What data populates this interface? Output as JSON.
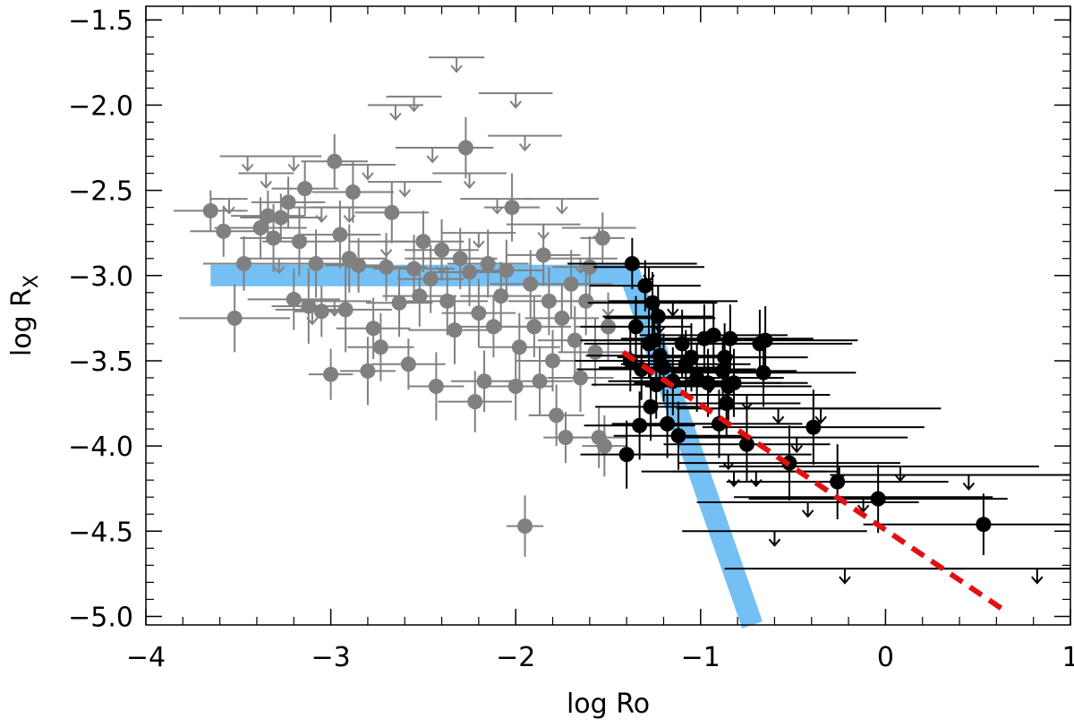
{
  "chart_data": {
    "type": "scatter",
    "xlabel": "log Ro",
    "ylabel": "log R",
    "ylabel_subscript": "X",
    "xlim": [
      -4,
      1
    ],
    "ylim": [
      -5.05,
      -1.42
    ],
    "x_ticks": [
      -4,
      -3,
      -2,
      -1,
      0,
      1
    ],
    "x_tick_labels": [
      "−4",
      "−3",
      "−2",
      "−1",
      "0",
      "1"
    ],
    "y_ticks": [
      -5.0,
      -4.5,
      -4.0,
      -3.5,
      -3.0,
      -2.5,
      -2.0,
      -1.5
    ],
    "y_tick_labels": [
      "−5.0",
      "−4.5",
      "−4.0",
      "−3.5",
      "−3.0",
      "−2.5",
      "−2.0",
      "−1.5"
    ],
    "colors": {
      "gray_sample": "#808080",
      "black_sample": "#000000",
      "saturation_model": "#74C0F5",
      "fit_line": "#E21010"
    },
    "model_curve": {
      "name": "saturation model",
      "x": [
        -3.65,
        -1.38,
        -0.72
      ],
      "y": [
        -3.0,
        -3.0,
        -5.05
      ]
    },
    "fit_line": {
      "name": "fit",
      "x": [
        -1.42,
        0.65
      ],
      "y": [
        -3.45,
        -4.97
      ]
    },
    "series": [
      {
        "name": "gray detections",
        "points": [
          {
            "x": -3.65,
            "y": -2.62,
            "xerr": 0.2,
            "yerr": 0.12
          },
          {
            "x": -3.58,
            "y": -2.74,
            "xerr": 0.18,
            "yerr": 0.15
          },
          {
            "x": -3.52,
            "y": -3.25,
            "xerr": 0.3,
            "yerr": 0.2
          },
          {
            "x": -3.47,
            "y": -2.93,
            "xerr": 0.22,
            "yerr": 0.16
          },
          {
            "x": -3.38,
            "y": -2.72,
            "xerr": 0.25,
            "yerr": 0.18
          },
          {
            "x": -3.34,
            "y": -2.65,
            "xerr": 0.2,
            "yerr": 0.15
          },
          {
            "x": -3.31,
            "y": -2.78,
            "xerr": 0.18,
            "yerr": 0.2
          },
          {
            "x": -3.27,
            "y": -2.66,
            "xerr": 0.22,
            "yerr": 0.14
          },
          {
            "x": -3.23,
            "y": -2.57,
            "xerr": 0.2,
            "yerr": 0.15
          },
          {
            "x": -3.2,
            "y": -3.14,
            "xerr": 0.25,
            "yerr": 0.18
          },
          {
            "x": -3.17,
            "y": -2.8,
            "xerr": 0.2,
            "yerr": 0.2
          },
          {
            "x": -3.14,
            "y": -2.49,
            "xerr": 0.18,
            "yerr": 0.16
          },
          {
            "x": -3.12,
            "y": -3.18,
            "xerr": 0.2,
            "yerr": 0.22
          },
          {
            "x": -3.08,
            "y": -2.93,
            "xerr": 0.22,
            "yerr": 0.2
          },
          {
            "x": -3.05,
            "y": -3.21,
            "xerr": 0.15,
            "yerr": 0.15
          },
          {
            "x": -3.0,
            "y": -3.58,
            "xerr": 0.12,
            "yerr": 0.15
          },
          {
            "x": -2.98,
            "y": -2.33,
            "xerr": 0.18,
            "yerr": 0.16
          },
          {
            "x": -2.95,
            "y": -2.76,
            "xerr": 0.22,
            "yerr": 0.2
          },
          {
            "x": -2.92,
            "y": -3.2,
            "xerr": 0.25,
            "yerr": 0.25
          },
          {
            "x": -2.9,
            "y": -2.9,
            "xerr": 0.2,
            "yerr": 0.2
          },
          {
            "x": -2.88,
            "y": -2.51,
            "xerr": 0.22,
            "yerr": 0.18
          },
          {
            "x": -2.85,
            "y": -2.94,
            "xerr": 0.18,
            "yerr": 0.16
          },
          {
            "x": -2.8,
            "y": -3.56,
            "xerr": 0.15,
            "yerr": 0.2
          },
          {
            "x": -2.77,
            "y": -3.31,
            "xerr": 0.2,
            "yerr": 0.18
          },
          {
            "x": -2.73,
            "y": -3.42,
            "xerr": 0.18,
            "yerr": 0.2
          },
          {
            "x": -2.7,
            "y": -2.95,
            "xerr": 0.22,
            "yerr": 0.2
          },
          {
            "x": -2.67,
            "y": -2.63,
            "xerr": 0.2,
            "yerr": 0.18
          },
          {
            "x": -2.63,
            "y": -3.16,
            "xerr": 0.18,
            "yerr": 0.2
          },
          {
            "x": -2.58,
            "y": -3.52,
            "xerr": 0.2,
            "yerr": 0.15
          },
          {
            "x": -2.55,
            "y": -2.96,
            "xerr": 0.22,
            "yerr": 0.2
          },
          {
            "x": -2.52,
            "y": -3.12,
            "xerr": 0.2,
            "yerr": 0.18
          },
          {
            "x": -2.5,
            "y": -2.8,
            "xerr": 0.22,
            "yerr": 0.18
          },
          {
            "x": -2.46,
            "y": -3.02,
            "xerr": 0.18,
            "yerr": 0.2
          },
          {
            "x": -2.43,
            "y": -3.65,
            "xerr": 0.15,
            "yerr": 0.2
          },
          {
            "x": -2.4,
            "y": -2.85,
            "xerr": 0.2,
            "yerr": 0.18
          },
          {
            "x": -2.37,
            "y": -3.15,
            "xerr": 0.22,
            "yerr": 0.2
          },
          {
            "x": -2.33,
            "y": -3.32,
            "xerr": 0.25,
            "yerr": 0.2
          },
          {
            "x": -2.3,
            "y": -2.9,
            "xerr": 0.2,
            "yerr": 0.18
          },
          {
            "x": -2.27,
            "y": -2.25,
            "xerr": 0.15,
            "yerr": 0.18
          },
          {
            "x": -2.25,
            "y": -2.98,
            "xerr": 0.22,
            "yerr": 0.2
          },
          {
            "x": -2.22,
            "y": -3.74,
            "xerr": 0.2,
            "yerr": 0.18
          },
          {
            "x": -2.2,
            "y": -3.22,
            "xerr": 0.2,
            "yerr": 0.2
          },
          {
            "x": -2.17,
            "y": -3.62,
            "xerr": 0.18,
            "yerr": 0.18
          },
          {
            "x": -2.15,
            "y": -2.93,
            "xerr": 0.22,
            "yerr": 0.2
          },
          {
            "x": -2.12,
            "y": -3.3,
            "xerr": 0.2,
            "yerr": 0.18
          },
          {
            "x": -2.08,
            "y": -3.12,
            "xerr": 0.22,
            "yerr": 0.2
          },
          {
            "x": -2.05,
            "y": -2.97,
            "xerr": 0.2,
            "yerr": 0.18
          },
          {
            "x": -2.02,
            "y": -2.6,
            "xerr": 0.15,
            "yerr": 0.2
          },
          {
            "x": -2.0,
            "y": -3.65,
            "xerr": 0.2,
            "yerr": 0.2
          },
          {
            "x": -1.98,
            "y": -3.42,
            "xerr": 0.22,
            "yerr": 0.2
          },
          {
            "x": -1.95,
            "y": -4.47,
            "xerr": 0.1,
            "yerr": 0.18
          },
          {
            "x": -1.92,
            "y": -3.05,
            "xerr": 0.22,
            "yerr": 0.2
          },
          {
            "x": -1.9,
            "y": -3.3,
            "xerr": 0.2,
            "yerr": 0.18
          },
          {
            "x": -1.87,
            "y": -3.62,
            "xerr": 0.18,
            "yerr": 0.2
          },
          {
            "x": -1.85,
            "y": -2.88,
            "xerr": 0.2,
            "yerr": 0.18
          },
          {
            "x": -1.82,
            "y": -3.15,
            "xerr": 0.22,
            "yerr": 0.2
          },
          {
            "x": -1.8,
            "y": -3.5,
            "xerr": 0.2,
            "yerr": 0.18
          },
          {
            "x": -1.78,
            "y": -3.82,
            "xerr": 0.15,
            "yerr": 0.18
          },
          {
            "x": -1.75,
            "y": -3.25,
            "xerr": 0.2,
            "yerr": 0.2
          },
          {
            "x": -1.73,
            "y": -3.95,
            "xerr": 0.12,
            "yerr": 0.15
          },
          {
            "x": -1.7,
            "y": -3.05,
            "xerr": 0.22,
            "yerr": 0.2
          },
          {
            "x": -1.68,
            "y": -3.38,
            "xerr": 0.2,
            "yerr": 0.2
          },
          {
            "x": -1.65,
            "y": -3.6,
            "xerr": 0.18,
            "yerr": 0.2
          },
          {
            "x": -1.62,
            "y": -3.15,
            "xerr": 0.22,
            "yerr": 0.2
          },
          {
            "x": -1.6,
            "y": -2.95,
            "xerr": 0.2,
            "yerr": 0.18
          },
          {
            "x": -1.57,
            "y": -3.45,
            "xerr": 0.2,
            "yerr": 0.2
          },
          {
            "x": -1.55,
            "y": -3.95,
            "xerr": 0.15,
            "yerr": 0.18
          },
          {
            "x": -1.53,
            "y": -2.78,
            "xerr": 0.12,
            "yerr": 0.15
          },
          {
            "x": -1.5,
            "y": -3.3,
            "xerr": 0.18,
            "yerr": 0.2
          },
          {
            "x": -1.52,
            "y": -4.0,
            "xerr": 0.12,
            "yerr": 0.18
          }
        ]
      },
      {
        "name": "gray upper limits",
        "points": [
          {
            "x": -3.55,
            "y": -2.55,
            "xerr": 0.1
          },
          {
            "x": -3.45,
            "y": -2.3,
            "xerr": 0.15
          },
          {
            "x": -3.35,
            "y": -2.4,
            "xerr": 0.15
          },
          {
            "x": -3.28,
            "y": -2.9,
            "xerr": 0.2
          },
          {
            "x": -3.2,
            "y": -2.3,
            "xerr": 0.15
          },
          {
            "x": -3.1,
            "y": -3.2,
            "xerr": 0.2
          },
          {
            "x": -2.98,
            "y": -3.15,
            "xerr": 0.2
          },
          {
            "x": -2.9,
            "y": -2.6,
            "xerr": 0.2
          },
          {
            "x": -2.8,
            "y": -2.35,
            "xerr": 0.15
          },
          {
            "x": -2.7,
            "y": -2.8,
            "xerr": 0.2
          },
          {
            "x": -2.6,
            "y": -2.45,
            "xerr": 0.2
          },
          {
            "x": -2.55,
            "y": -1.95,
            "xerr": 0.15
          },
          {
            "x": -2.45,
            "y": -2.25,
            "xerr": 0.2
          },
          {
            "x": -2.4,
            "y": -2.9,
            "xerr": 0.2
          },
          {
            "x": -2.32,
            "y": -1.72,
            "xerr": 0.15
          },
          {
            "x": -2.25,
            "y": -2.4,
            "xerr": 0.2
          },
          {
            "x": -2.2,
            "y": -2.75,
            "xerr": 0.2
          },
          {
            "x": -2.1,
            "y": -2.55,
            "xerr": 0.2
          },
          {
            "x": -2.0,
            "y": -1.93,
            "xerr": 0.2
          },
          {
            "x": -1.95,
            "y": -2.18,
            "xerr": 0.2
          },
          {
            "x": -1.85,
            "y": -2.7,
            "xerr": 0.2
          },
          {
            "x": -1.75,
            "y": -2.55,
            "xerr": 0.2
          },
          {
            "x": -1.65,
            "y": -2.9,
            "xerr": 0.2
          },
          {
            "x": -1.55,
            "y": -2.72,
            "xerr": 0.2
          },
          {
            "x": -1.5,
            "y": -3.15,
            "xerr": 0.2
          },
          {
            "x": -2.65,
            "y": -2.0,
            "xerr": 0.15
          },
          {
            "x": -3.05,
            "y": -2.6,
            "xerr": 0.2
          }
        ]
      },
      {
        "name": "black detections",
        "points": [
          {
            "x": -1.4,
            "y": -4.05,
            "xerr": 0.25,
            "yerr": 0.2
          },
          {
            "x": -1.38,
            "y": -3.5,
            "xerr": 0.3,
            "yerr": 0.18
          },
          {
            "x": -1.37,
            "y": -2.93,
            "xerr": 0.35,
            "yerr": 0.15
          },
          {
            "x": -1.35,
            "y": -3.3,
            "xerr": 0.3,
            "yerr": 0.18
          },
          {
            "x": -1.33,
            "y": -3.88,
            "xerr": 0.3,
            "yerr": 0.2
          },
          {
            "x": -1.32,
            "y": -3.55,
            "xerr": 0.35,
            "yerr": 0.18
          },
          {
            "x": -1.3,
            "y": -3.06,
            "xerr": 0.3,
            "yerr": 0.15
          },
          {
            "x": -1.28,
            "y": -3.4,
            "xerr": 0.35,
            "yerr": 0.2
          },
          {
            "x": -1.27,
            "y": -3.77,
            "xerr": 0.3,
            "yerr": 0.2
          },
          {
            "x": -1.26,
            "y": -3.16,
            "xerr": 0.35,
            "yerr": 0.18
          },
          {
            "x": -1.25,
            "y": -3.38,
            "xerr": 0.4,
            "yerr": 0.18
          },
          {
            "x": -1.24,
            "y": -3.64,
            "xerr": 0.35,
            "yerr": 0.2
          },
          {
            "x": -1.23,
            "y": -3.24,
            "xerr": 0.3,
            "yerr": 0.18
          },
          {
            "x": -1.22,
            "y": -3.47,
            "xerr": 0.4,
            "yerr": 0.18
          },
          {
            "x": -1.2,
            "y": -3.54,
            "xerr": 0.35,
            "yerr": 0.2
          },
          {
            "x": -1.18,
            "y": -3.87,
            "xerr": 0.3,
            "yerr": 0.2
          },
          {
            "x": -1.15,
            "y": -3.62,
            "xerr": 0.35,
            "yerr": 0.2
          },
          {
            "x": -1.12,
            "y": -3.94,
            "xerr": 0.35,
            "yerr": 0.2
          },
          {
            "x": -1.1,
            "y": -3.4,
            "xerr": 0.4,
            "yerr": 0.2
          },
          {
            "x": -1.08,
            "y": -3.52,
            "xerr": 0.35,
            "yerr": 0.2
          },
          {
            "x": -1.05,
            "y": -3.48,
            "xerr": 0.4,
            "yerr": 0.2
          },
          {
            "x": -1.02,
            "y": -3.6,
            "xerr": 0.35,
            "yerr": 0.2
          },
          {
            "x": -0.98,
            "y": -3.37,
            "xerr": 0.45,
            "yerr": 0.2
          },
          {
            "x": -0.96,
            "y": -3.63,
            "xerr": 0.4,
            "yerr": 0.2
          },
          {
            "x": -0.93,
            "y": -3.35,
            "xerr": 0.4,
            "yerr": 0.2
          },
          {
            "x": -0.9,
            "y": -3.87,
            "xerr": 0.45,
            "yerr": 0.2
          },
          {
            "x": -0.88,
            "y": -3.56,
            "xerr": 0.4,
            "yerr": 0.2
          },
          {
            "x": -0.87,
            "y": -3.48,
            "xerr": 0.45,
            "yerr": 0.2
          },
          {
            "x": -0.86,
            "y": -3.75,
            "xerr": 0.4,
            "yerr": 0.2
          },
          {
            "x": -0.85,
            "y": -3.65,
            "xerr": 0.45,
            "yerr": 0.2
          },
          {
            "x": -0.84,
            "y": -3.37,
            "xerr": 0.45,
            "yerr": 0.2
          },
          {
            "x": -0.82,
            "y": -3.63,
            "xerr": 0.4,
            "yerr": 0.2
          },
          {
            "x": -0.75,
            "y": -3.99,
            "xerr": 0.45,
            "yerr": 0.22
          },
          {
            "x": -0.68,
            "y": -3.4,
            "xerr": 0.5,
            "yerr": 0.2
          },
          {
            "x": -0.66,
            "y": -3.57,
            "xerr": 0.5,
            "yerr": 0.2
          },
          {
            "x": -0.65,
            "y": -3.38,
            "xerr": 0.5,
            "yerr": 0.2
          },
          {
            "x": -0.52,
            "y": -4.1,
            "xerr": 0.6,
            "yerr": 0.22
          },
          {
            "x": -0.39,
            "y": -3.89,
            "xerr": 0.6,
            "yerr": 0.22
          },
          {
            "x": -0.26,
            "y": -4.21,
            "xerr": 0.6,
            "yerr": 0.22
          },
          {
            "x": -0.04,
            "y": -4.31,
            "xerr": 0.7,
            "yerr": 0.2
          },
          {
            "x": 0.53,
            "y": -4.46,
            "xerr": 0.65,
            "yerr": 0.18
          }
        ]
      },
      {
        "name": "black upper limits",
        "points": [
          {
            "x": -1.28,
            "y": -2.95,
            "xerr": 0.3
          },
          {
            "x": -1.22,
            "y": -3.25,
            "xerr": 0.3
          },
          {
            "x": -1.15,
            "y": -3.15,
            "xerr": 0.35
          },
          {
            "x": -1.05,
            "y": -3.55,
            "xerr": 0.35
          },
          {
            "x": -0.95,
            "y": -3.6,
            "xerr": 0.4
          },
          {
            "x": -0.85,
            "y": -4.05,
            "xerr": 0.45
          },
          {
            "x": -0.75,
            "y": -3.7,
            "xerr": 0.45
          },
          {
            "x": -0.7,
            "y": -4.15,
            "xerr": 0.45
          },
          {
            "x": -0.58,
            "y": -3.78,
            "xerr": 0.55
          },
          {
            "x": -0.48,
            "y": -3.95,
            "xerr": 0.6
          },
          {
            "x": -0.42,
            "y": -4.33,
            "xerr": 0.6
          },
          {
            "x": -0.35,
            "y": -3.78,
            "xerr": 0.65
          },
          {
            "x": -0.25,
            "y": -4.12,
            "xerr": 0.65
          },
          {
            "x": -0.22,
            "y": -4.72,
            "xerr": 0.65
          },
          {
            "x": -0.6,
            "y": -4.5,
            "xerr": 0.5
          },
          {
            "x": -0.82,
            "y": -4.15,
            "xerr": 0.5
          },
          {
            "x": -0.12,
            "y": -4.3,
            "xerr": 0.7
          },
          {
            "x": 0.08,
            "y": -4.12,
            "xerr": 0.75
          },
          {
            "x": 0.45,
            "y": -4.17,
            "xerr": 0.75
          },
          {
            "x": 0.82,
            "y": -4.72,
            "xerr": 0.6
          }
        ]
      }
    ]
  }
}
